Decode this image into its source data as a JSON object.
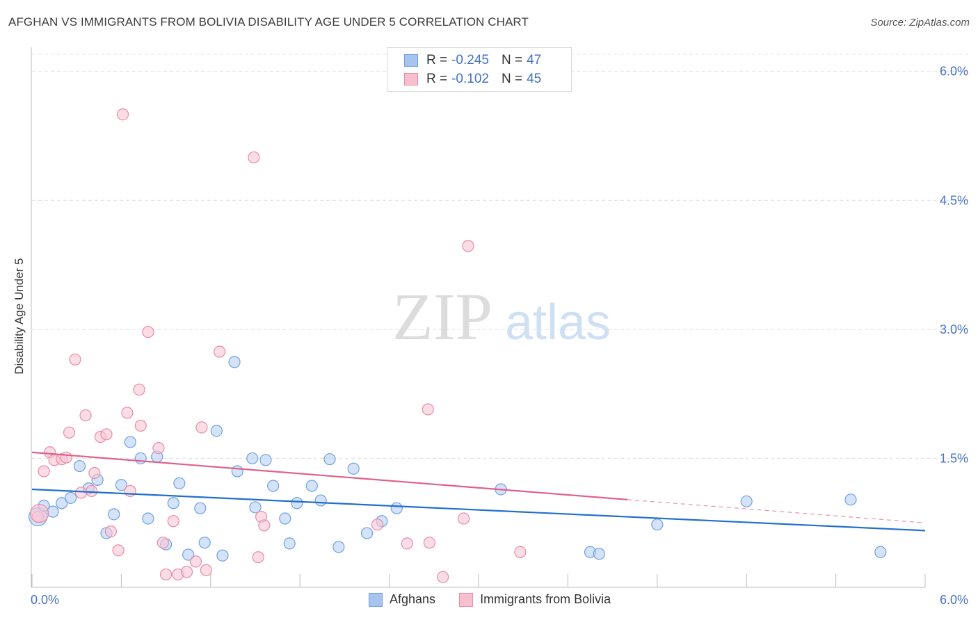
{
  "title": "AFGHAN VS IMMIGRANTS FROM BOLIVIA DISABILITY AGE UNDER 5 CORRELATION CHART",
  "source": "Source: ZipAtlas.com",
  "watermark": {
    "zip": "ZIP",
    "atlas": "atlas"
  },
  "legend": {
    "rows": [
      {
        "r_label": "R =",
        "r_value": "-0.245",
        "n_label": "N =",
        "n_value": "47",
        "color": "#a7c4ef",
        "border": "#6f9ee0"
      },
      {
        "r_label": "R =",
        "r_value": "-0.102",
        "n_label": "N =",
        "n_value": "45",
        "color": "#f7bfcf",
        "border": "#ea8aa6"
      }
    ]
  },
  "bottom_legend": [
    {
      "label": "Afghans",
      "color": "#a7c4ef",
      "border": "#6f9ee0"
    },
    {
      "label": "Immigrants from Bolivia",
      "color": "#f7bfcf",
      "border": "#ea8aa6"
    }
  ],
  "chart_data": {
    "type": "scatter",
    "title": "AFGHAN VS IMMIGRANTS FROM BOLIVIA DISABILITY AGE UNDER 5 CORRELATION CHART",
    "xlabel": "",
    "ylabel": "Disability Age Under 5",
    "xlim": [
      0,
      6.0
    ],
    "ylim": [
      0,
      6.2
    ],
    "x_tick_labels": [
      "0.0%",
      "6.0%"
    ],
    "y_ticks": [
      1.5,
      3.0,
      4.5,
      6.0
    ],
    "y_tick_labels": [
      "1.5%",
      "3.0%",
      "4.5%",
      "6.0%"
    ],
    "grid": true,
    "series": [
      {
        "name": "Afghans",
        "color": "#6fa0e2",
        "fill": "#b8d0f3",
        "trend_color": "#1f6fd0",
        "trend": {
          "x0": 0,
          "y0": 1.14,
          "x1": 6.0,
          "y1": 0.66
        },
        "points": [
          [
            0.04,
            0.82
          ],
          [
            0.08,
            0.95
          ],
          [
            0.14,
            0.88
          ],
          [
            0.2,
            0.98
          ],
          [
            0.26,
            1.04
          ],
          [
            0.32,
            1.41
          ],
          [
            0.38,
            1.15
          ],
          [
            0.44,
            1.25
          ],
          [
            0.5,
            0.63
          ],
          [
            0.55,
            0.85
          ],
          [
            0.6,
            1.19
          ],
          [
            0.66,
            1.69
          ],
          [
            0.73,
            1.5
          ],
          [
            0.78,
            0.8
          ],
          [
            0.84,
            1.52
          ],
          [
            0.9,
            0.5
          ],
          [
            0.95,
            0.98
          ],
          [
            0.99,
            1.21
          ],
          [
            1.05,
            0.38
          ],
          [
            1.13,
            0.92
          ],
          [
            1.16,
            0.52
          ],
          [
            1.28,
            0.37
          ],
          [
            1.24,
            1.82
          ],
          [
            1.36,
            2.62
          ],
          [
            1.38,
            1.35
          ],
          [
            1.48,
            1.5
          ],
          [
            1.5,
            0.93
          ],
          [
            1.57,
            1.48
          ],
          [
            1.62,
            1.18
          ],
          [
            1.7,
            0.8
          ],
          [
            1.73,
            0.51
          ],
          [
            1.78,
            0.98
          ],
          [
            1.88,
            1.18
          ],
          [
            1.94,
            1.01
          ],
          [
            2.0,
            1.49
          ],
          [
            2.06,
            0.47
          ],
          [
            2.16,
            1.38
          ],
          [
            2.25,
            0.63
          ],
          [
            2.35,
            0.77
          ],
          [
            2.45,
            0.92
          ],
          [
            3.15,
            1.14
          ],
          [
            3.75,
            0.41
          ],
          [
            3.81,
            0.39
          ],
          [
            4.2,
            0.73
          ],
          [
            4.8,
            1.0
          ],
          [
            5.5,
            1.02
          ],
          [
            5.7,
            0.41
          ]
        ]
      },
      {
        "name": "Immigrants from Bolivia",
        "color": "#ea8aa6",
        "fill": "#f8c6d5",
        "trend_color": "#e0608a",
        "trend": {
          "x0": 0,
          "y0": 1.57,
          "x1": 4.0,
          "y1": 1.02
        },
        "trend_dashed_to": {
          "x1": 6.0,
          "y1": 0.75
        },
        "points": [
          [
            0.04,
            0.82
          ],
          [
            0.08,
            1.35
          ],
          [
            0.12,
            1.57
          ],
          [
            0.15,
            1.48
          ],
          [
            0.2,
            1.49
          ],
          [
            0.23,
            1.51
          ],
          [
            0.25,
            1.8
          ],
          [
            0.29,
            2.65
          ],
          [
            0.33,
            1.1
          ],
          [
            0.36,
            2.0
          ],
          [
            0.4,
            1.12
          ],
          [
            0.42,
            1.33
          ],
          [
            0.46,
            1.75
          ],
          [
            0.5,
            1.78
          ],
          [
            0.53,
            0.65
          ],
          [
            0.58,
            0.43
          ],
          [
            0.61,
            5.5
          ],
          [
            0.64,
            2.03
          ],
          [
            0.66,
            1.12
          ],
          [
            0.72,
            2.3
          ],
          [
            0.73,
            1.88
          ],
          [
            0.78,
            2.97
          ],
          [
            0.85,
            1.62
          ],
          [
            0.88,
            0.52
          ],
          [
            0.9,
            0.15
          ],
          [
            0.95,
            0.77
          ],
          [
            0.98,
            0.15
          ],
          [
            1.04,
            0.18
          ],
          [
            1.1,
            0.3
          ],
          [
            1.14,
            1.86
          ],
          [
            1.17,
            0.2
          ],
          [
            1.26,
            2.74
          ],
          [
            1.49,
            5.0
          ],
          [
            1.52,
            0.35
          ],
          [
            1.54,
            0.82
          ],
          [
            1.56,
            0.72
          ],
          [
            2.32,
            0.73
          ],
          [
            2.52,
            0.51
          ],
          [
            2.66,
            2.07
          ],
          [
            2.67,
            0.52
          ],
          [
            2.76,
            0.12
          ],
          [
            2.93,
            3.97
          ],
          [
            2.9,
            0.8
          ],
          [
            3.28,
            0.41
          ],
          [
            0.05,
            0.86
          ]
        ]
      }
    ]
  }
}
